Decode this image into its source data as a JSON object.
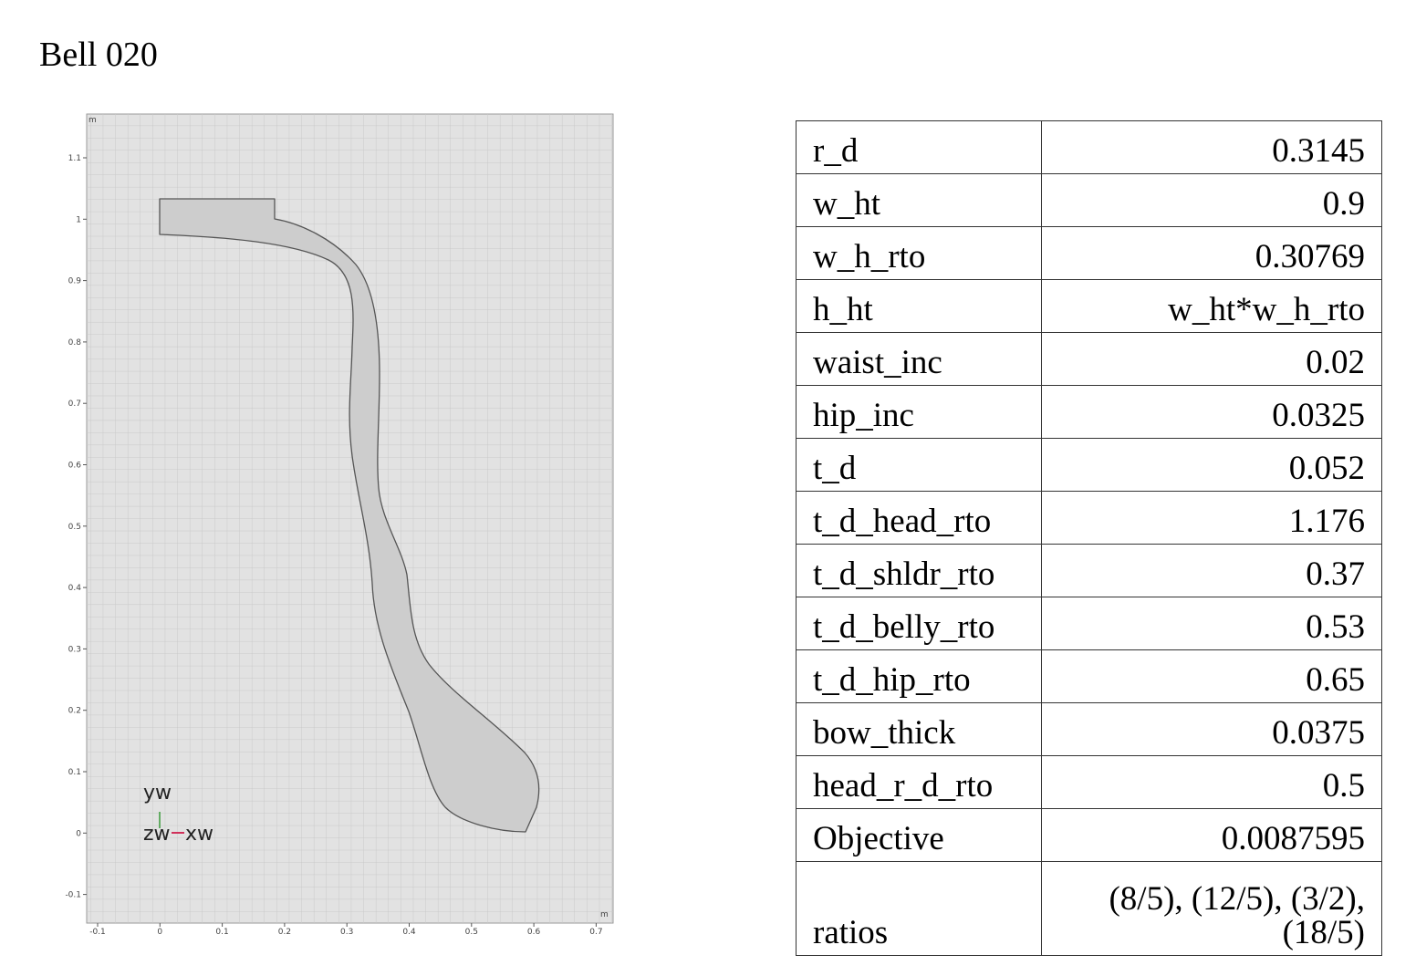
{
  "title": "Bell 020",
  "plot": {
    "x_ticks": [
      "-0.1",
      "0",
      "0.1",
      "0.2",
      "0.3",
      "0.4",
      "0.5",
      "0.6",
      "0.7"
    ],
    "y_ticks": [
      "1.1",
      "1",
      "0.9",
      "0.8",
      "0.7",
      "0.6",
      "0.5",
      "0.4",
      "0.3",
      "0.2",
      "0.1",
      "0",
      "-0.1"
    ],
    "unit_label": "m",
    "axis_labels": {
      "y": "yw",
      "z": "zw",
      "x": "xw"
    },
    "colors": {
      "background": "#e2e2e2",
      "grid": "#c6c6c6",
      "shape_fill": "#cdcdcd",
      "shape_stroke": "#555555",
      "y_axis": "#3a9a3a",
      "x_axis": "#d0305a"
    }
  },
  "table": {
    "rows": [
      {
        "key": "r_d",
        "value": "0.3145"
      },
      {
        "key": "w_ht",
        "value": "0.9"
      },
      {
        "key": "w_h_rto",
        "value": "0.30769"
      },
      {
        "key": "h_ht",
        "value": "w_ht*w_h_rto"
      },
      {
        "key": "waist_inc",
        "value": "0.02"
      },
      {
        "key": "hip_inc",
        "value": "0.0325"
      },
      {
        "key": "t_d",
        "value": "0.052"
      },
      {
        "key": "t_d_head_rto",
        "value": "1.176"
      },
      {
        "key": "t_d_shldr_rto",
        "value": "0.37"
      },
      {
        "key": "t_d_belly_rto",
        "value": "0.53"
      },
      {
        "key": "t_d_hip_rto",
        "value": "0.65"
      },
      {
        "key": "bow_thick",
        "value": "0.0375"
      },
      {
        "key": "head_r_d_rto",
        "value": "0.5"
      },
      {
        "key": "Objective",
        "value": "0.0087595"
      }
    ],
    "ratios": {
      "key": "ratios",
      "value_line1": "(8/5), (12/5), (3/2),",
      "value_line2": "(18/5)"
    }
  }
}
